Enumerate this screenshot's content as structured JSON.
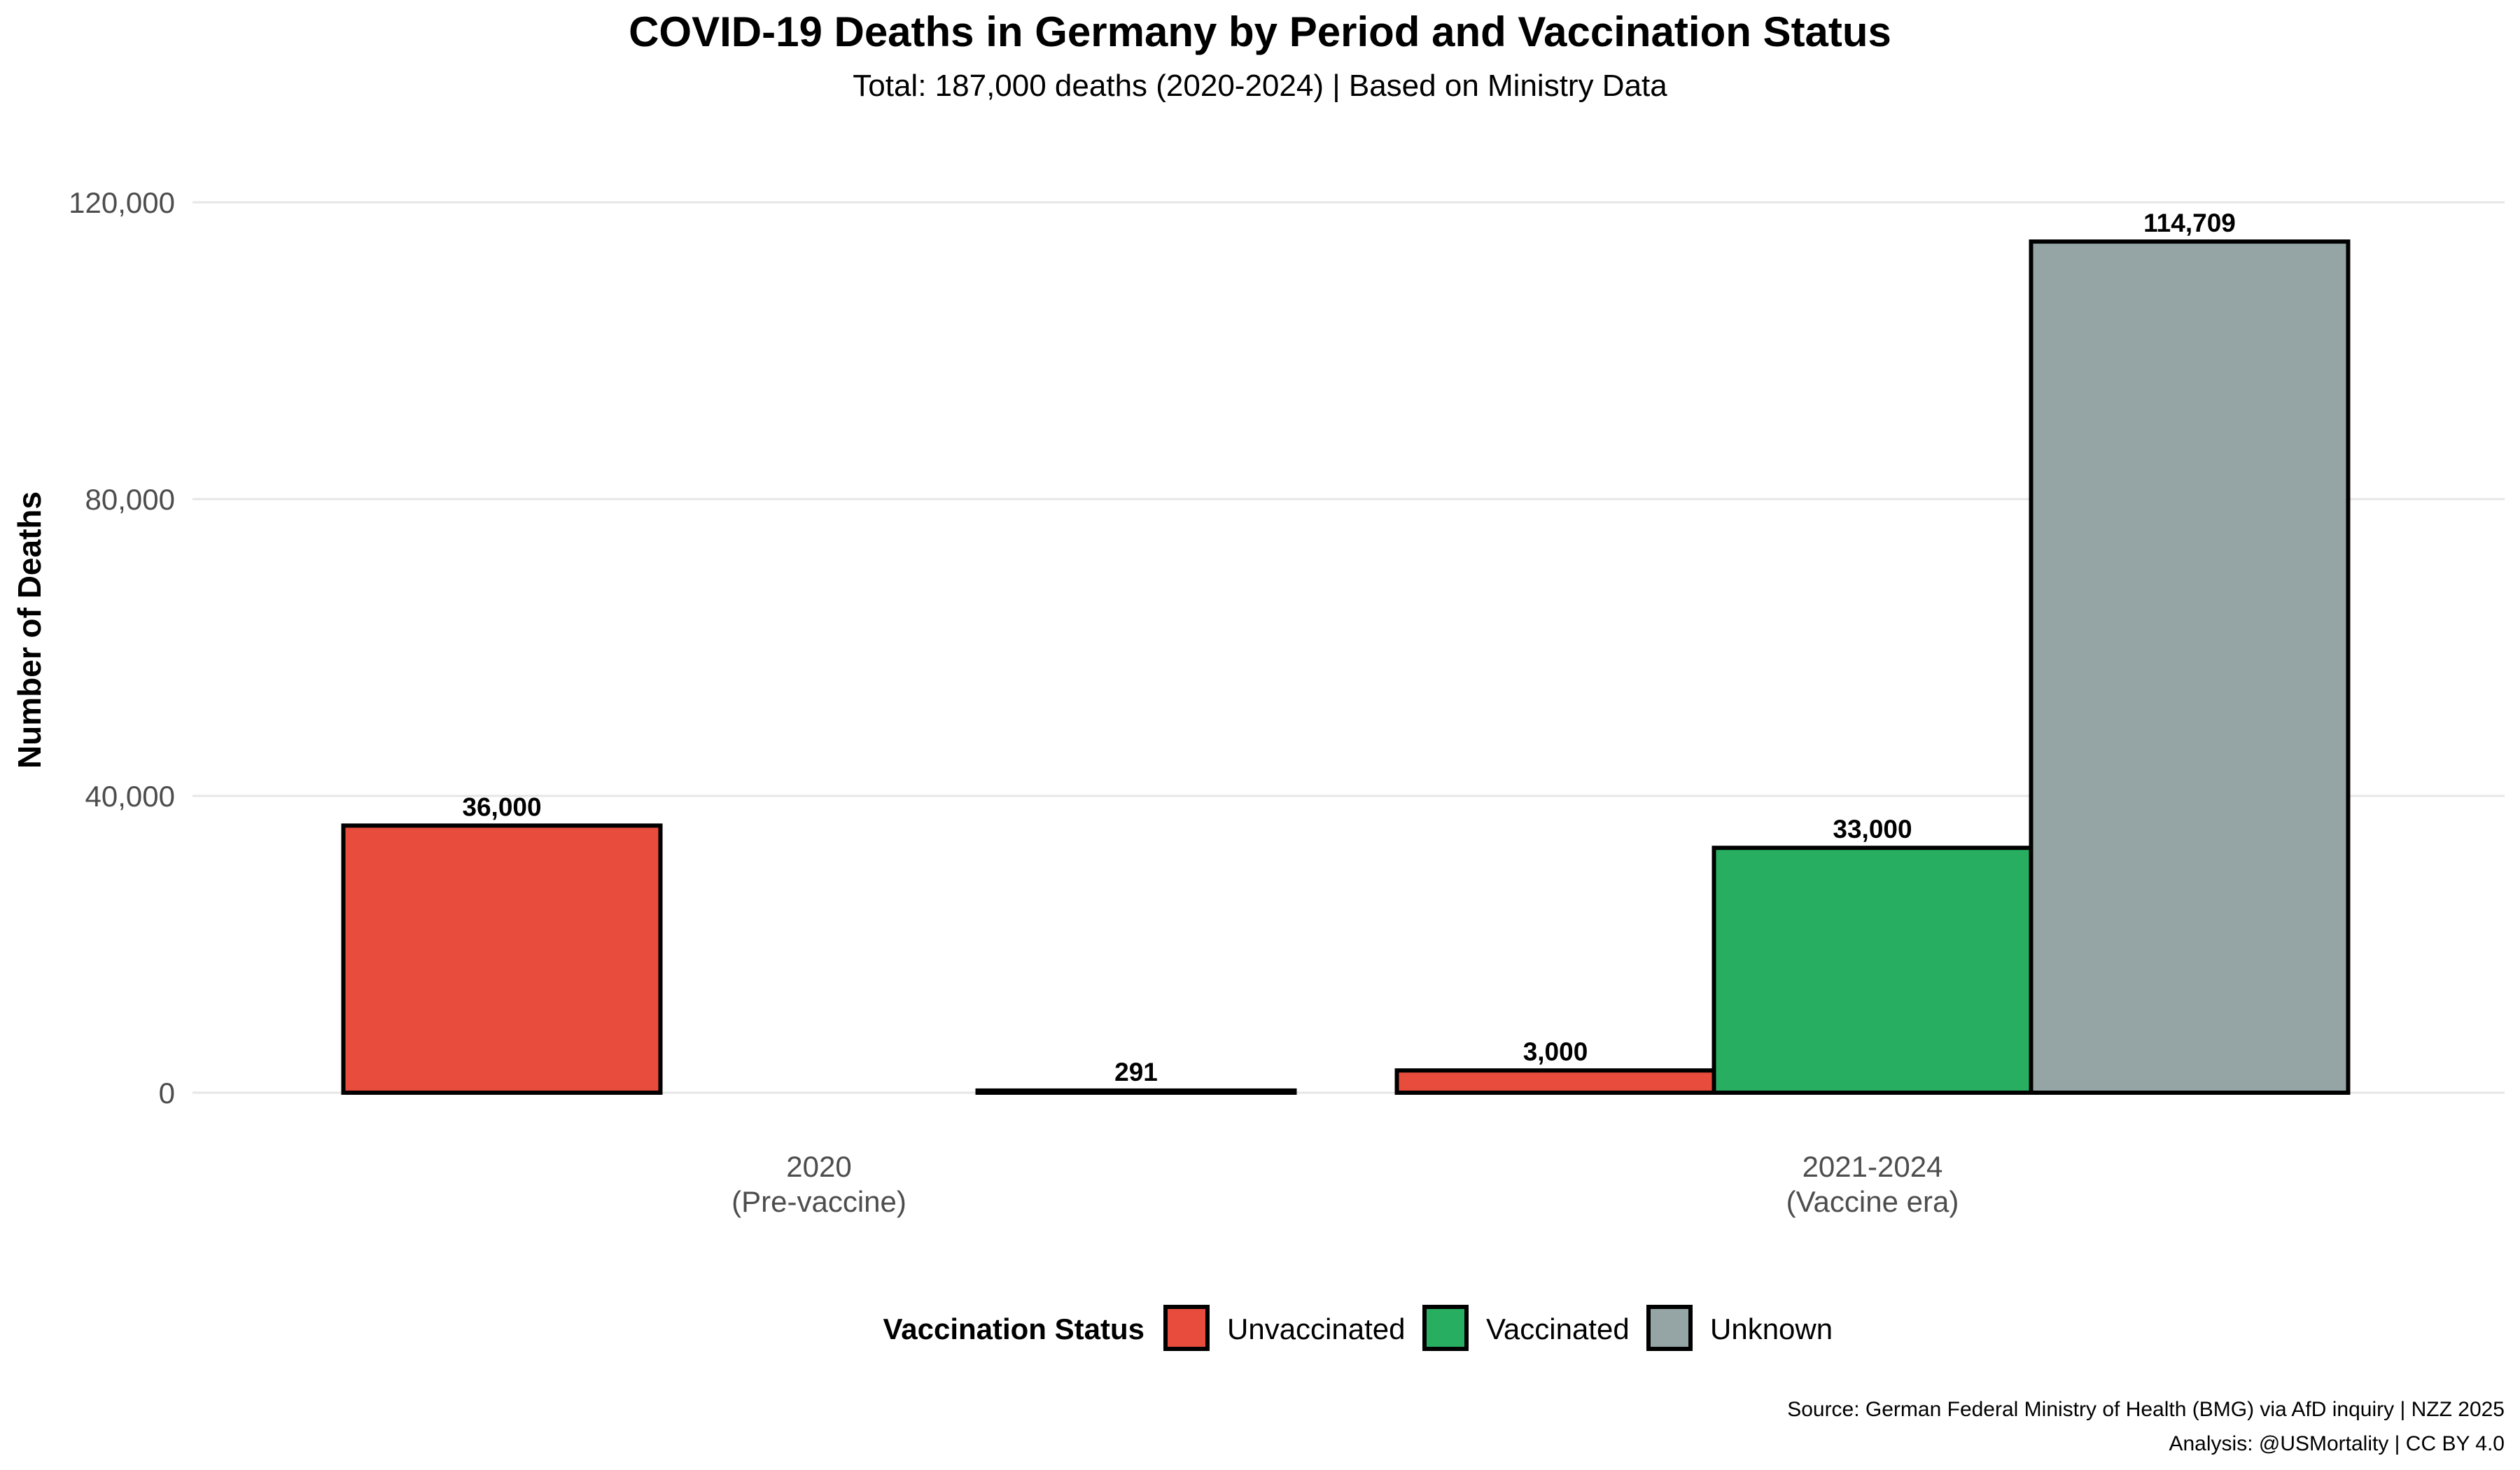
{
  "chart_data": {
    "type": "bar",
    "title": "COVID-19 Deaths in Germany by Period and Vaccination Status",
    "subtitle": "Total: 187,000 deaths (2020-2024) | Based on Ministry Data",
    "ylabel": "Number of Deaths",
    "xlabel": "",
    "categories": [
      {
        "line1": "2020",
        "line2": "(Pre-vaccine)"
      },
      {
        "line1": "2021-2024",
        "line2": "(Vaccine era)"
      }
    ],
    "series": [
      {
        "name": "Unvaccinated",
        "color": "#e74c3c",
        "values": [
          36000,
          3000
        ],
        "labels": [
          "36,000",
          "3,000"
        ]
      },
      {
        "name": "Vaccinated",
        "color": "#27ae60",
        "values": [
          0,
          33000
        ],
        "labels": [
          "",
          "33,000"
        ]
      },
      {
        "name": "Unknown",
        "color": "#95a5a6",
        "values": [
          291,
          114709
        ],
        "labels": [
          "291",
          "114,709"
        ]
      }
    ],
    "ylim": [
      0,
      120000
    ],
    "yticks": [
      {
        "value": 0,
        "label": "0"
      },
      {
        "value": 40000,
        "label": "40,000"
      },
      {
        "value": 80000,
        "label": "80,000"
      },
      {
        "value": 120000,
        "label": "120,000"
      }
    ],
    "grid": true,
    "legend": {
      "title": "Vaccination Status",
      "position": "bottom"
    },
    "caption": [
      "Source: German Federal Ministry of Health (BMG) via AfD inquiry | NZZ 2025",
      "Analysis: @USMortality | CC BY 4.0"
    ]
  }
}
